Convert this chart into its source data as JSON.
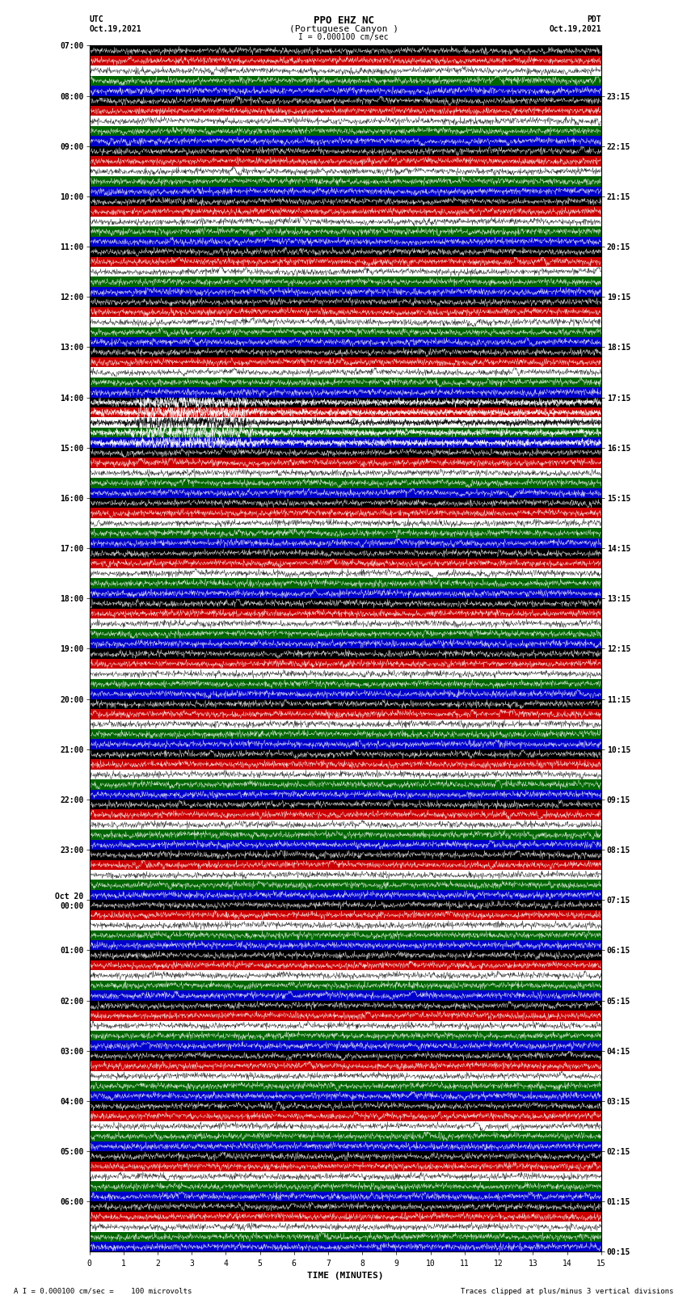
{
  "title_line1": "PPO EHZ NC",
  "title_line2": "(Portuguese Canyon )",
  "title_line3": "I = 0.000100 cm/sec",
  "left_label_top": "UTC",
  "left_label_date": "Oct.19,2021",
  "right_label_top": "PDT",
  "right_label_date": "Oct.19,2021",
  "xlabel": "TIME (MINUTES)",
  "footer_left": "A I = 0.000100 cm/sec =    100 microvolts",
  "footer_right": "Traces clipped at plus/minus 3 vertical divisions",
  "utc_times": [
    "07:00",
    "08:00",
    "09:00",
    "10:00",
    "11:00",
    "12:00",
    "13:00",
    "14:00",
    "15:00",
    "16:00",
    "17:00",
    "18:00",
    "19:00",
    "20:00",
    "21:00",
    "22:00",
    "23:00",
    "Oct 20\n00:00",
    "01:00",
    "02:00",
    "03:00",
    "04:00",
    "05:00",
    "06:00"
  ],
  "pdt_times": [
    "00:15",
    "01:15",
    "02:15",
    "03:15",
    "04:15",
    "05:15",
    "06:15",
    "07:15",
    "08:15",
    "09:15",
    "10:15",
    "11:15",
    "12:15",
    "13:15",
    "14:15",
    "15:15",
    "16:15",
    "17:15",
    "18:15",
    "19:15",
    "20:15",
    "21:15",
    "22:15",
    "23:15"
  ],
  "num_rows": 24,
  "bg_color": "#ffffff",
  "xmin": 0,
  "xmax": 15,
  "xticks": [
    0,
    1,
    2,
    3,
    4,
    5,
    6,
    7,
    8,
    9,
    10,
    11,
    12,
    13,
    14,
    15
  ],
  "seed": 42
}
